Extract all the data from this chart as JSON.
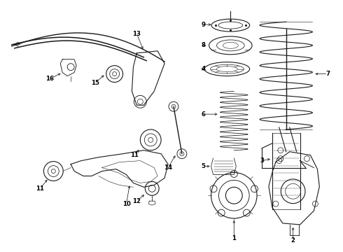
{
  "background_color": "#ffffff",
  "line_color": "#1a1a1a",
  "text_color": "#000000",
  "fig_width": 4.9,
  "fig_height": 3.6,
  "dpi": 100
}
